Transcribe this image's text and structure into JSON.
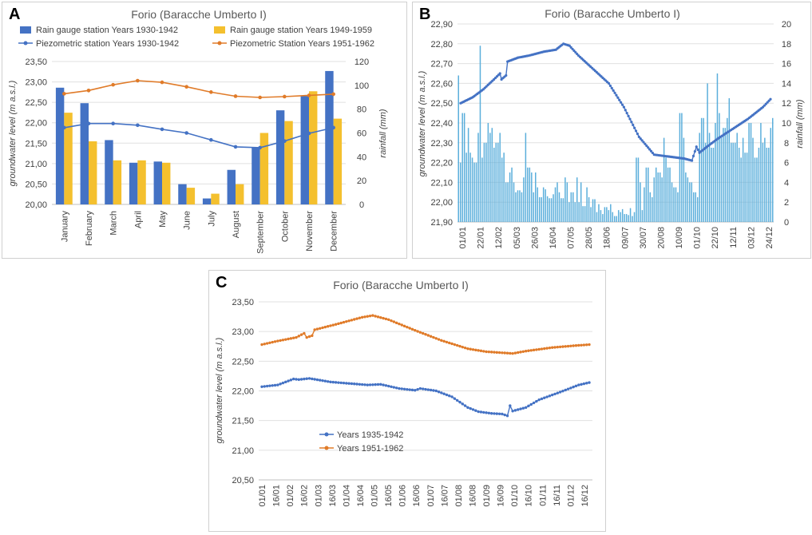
{
  "chart_data": [
    {
      "panel": "A",
      "type": "bar",
      "title": "Forio (Baracche Umberto I)",
      "ylabel": "groundwater level (m a.s.l.)",
      "y2label": "rainfall (mm)",
      "ylim": [
        20.0,
        23.5
      ],
      "y2lim": [
        0,
        120
      ],
      "yticks": [
        "20,00",
        "20,50",
        "21,00",
        "21,50",
        "22,00",
        "22,50",
        "23,00",
        "23,50"
      ],
      "y2ticks": [
        "0",
        "20",
        "40",
        "60",
        "80",
        "100",
        "120"
      ],
      "categories": [
        "January",
        "February",
        "March",
        "April",
        "May",
        "June",
        "July",
        "August",
        "September",
        "October",
        "November",
        "December"
      ],
      "series": [
        {
          "name": "Rain gauge station Years 1930-1942",
          "kind": "bar",
          "color": "#4472c4",
          "values": [
            98,
            85,
            54,
            35,
            36,
            17,
            5,
            29,
            48,
            79,
            91,
            112
          ]
        },
        {
          "name": "Rain gauge station Years 1949-1959",
          "kind": "bar",
          "color": "#f4c02e",
          "values": [
            77,
            53,
            37,
            37,
            35,
            14,
            9,
            17,
            60,
            70,
            95,
            72
          ]
        },
        {
          "name": "Piezometric station Years 1930-1942",
          "kind": "line",
          "color": "#4472c4",
          "values": [
            21.88,
            21.98,
            21.98,
            21.94,
            21.84,
            21.75,
            21.58,
            21.41,
            21.39,
            21.55,
            21.74,
            21.88
          ]
        },
        {
          "name": "Piezometric Station Years 1951-1962",
          "kind": "line",
          "color": "#e07b29",
          "values": [
            22.71,
            22.79,
            22.93,
            23.03,
            22.99,
            22.88,
            22.75,
            22.65,
            22.62,
            22.64,
            22.67,
            22.7
          ]
        }
      ]
    },
    {
      "panel": "B",
      "type": "bar",
      "title": "Forio (Baracche Umberto I)",
      "ylabel": "groundwater level (m a.s.l.)",
      "y2label": "rainfall (mm)",
      "ylim": [
        21.9,
        22.9
      ],
      "y2lim": [
        0,
        20
      ],
      "yticks": [
        "21,90",
        "22,00",
        "22,10",
        "22,20",
        "22,30",
        "22,40",
        "22,50",
        "22,60",
        "22,70",
        "22,80",
        "22,90"
      ],
      "y2ticks": [
        "0",
        "2",
        "4",
        "6",
        "8",
        "10",
        "12",
        "14",
        "16",
        "18",
        "20"
      ],
      "xticks": [
        "01/01",
        "22/01",
        "12/02",
        "05/03",
        "26/03",
        "16/04",
        "07/05",
        "28/05",
        "18/06",
        "09/07",
        "30/07",
        "20/08",
        "10/09",
        "01/10",
        "22/10",
        "12/11",
        "03/12",
        "24/12"
      ],
      "level_key_points": [
        [
          0,
          22.5
        ],
        [
          8,
          22.53
        ],
        [
          15,
          22.57
        ],
        [
          22,
          22.62
        ],
        [
          26,
          22.65
        ],
        [
          27,
          22.62
        ],
        [
          30,
          22.64
        ],
        [
          31,
          22.71
        ],
        [
          38,
          22.73
        ],
        [
          45,
          22.74
        ],
        [
          55,
          22.76
        ],
        [
          63,
          22.77
        ],
        [
          68,
          22.8
        ],
        [
          72,
          22.79
        ],
        [
          78,
          22.74
        ],
        [
          88,
          22.67
        ],
        [
          98,
          22.6
        ],
        [
          108,
          22.48
        ],
        [
          118,
          22.33
        ],
        [
          128,
          22.24
        ],
        [
          138,
          22.23
        ],
        [
          148,
          22.22
        ],
        [
          153,
          22.21
        ],
        [
          156,
          22.28
        ],
        [
          158,
          22.25
        ],
        [
          163,
          22.28
        ],
        [
          170,
          22.32
        ],
        [
          180,
          22.37
        ],
        [
          190,
          22.42
        ],
        [
          200,
          22.48
        ],
        [
          205,
          22.52
        ]
      ],
      "rain_key_points": [
        [
          0,
          14.8
        ],
        [
          1,
          6.0
        ],
        [
          2,
          11.0
        ],
        [
          3,
          7.0
        ],
        [
          4,
          9.5
        ],
        [
          5,
          7.0
        ],
        [
          6,
          6.5
        ],
        [
          7,
          6.0
        ],
        [
          8,
          9.0
        ],
        [
          9,
          17.8
        ],
        [
          10,
          6.5
        ],
        [
          11,
          8.0
        ],
        [
          12,
          10.0
        ],
        [
          13,
          9.0
        ],
        [
          14,
          9.5
        ],
        [
          15,
          7.5
        ],
        [
          16,
          8.0
        ],
        [
          17,
          9.0
        ],
        [
          18,
          6.5
        ],
        [
          19,
          7.0
        ],
        [
          20,
          4.0
        ],
        [
          21,
          5.0
        ],
        [
          22,
          5.5
        ],
        [
          23,
          4.0
        ],
        [
          24,
          3.0
        ],
        [
          25,
          3.2
        ],
        [
          26,
          3.0
        ],
        [
          27,
          4.5
        ],
        [
          28,
          9.0
        ],
        [
          29,
          5.5
        ],
        [
          30,
          5.0
        ],
        [
          31,
          3.0
        ],
        [
          32,
          5.0
        ],
        [
          33,
          3.5
        ],
        [
          34,
          2.5
        ],
        [
          35,
          3.5
        ],
        [
          36,
          3.3
        ],
        [
          37,
          2.6
        ],
        [
          38,
          2.4
        ],
        [
          39,
          2.8
        ],
        [
          40,
          3.5
        ],
        [
          41,
          4.0
        ],
        [
          42,
          3.0
        ],
        [
          43,
          2.4
        ],
        [
          44,
          4.5
        ],
        [
          45,
          4.0
        ],
        [
          46,
          2.0
        ],
        [
          47,
          3.0
        ],
        [
          48,
          2.0
        ],
        [
          49,
          4.5
        ],
        [
          50,
          2.0
        ],
        [
          51,
          4.0
        ],
        [
          52,
          1.6
        ],
        [
          53,
          3.5
        ],
        [
          54,
          2.5
        ],
        [
          55,
          1.5
        ],
        [
          56,
          2.3
        ],
        [
          57,
          1.0
        ],
        [
          58,
          1.8
        ],
        [
          59,
          1.2
        ],
        [
          60,
          0.8
        ],
        [
          61,
          1.5
        ],
        [
          62,
          1.2
        ],
        [
          63,
          1.8
        ],
        [
          64,
          1.0
        ],
        [
          65,
          0.6
        ],
        [
          66,
          1.2
        ],
        [
          67,
          1.0
        ],
        [
          68,
          1.3
        ],
        [
          69,
          0.8
        ],
        [
          70,
          0.7
        ],
        [
          71,
          1.4
        ],
        [
          72,
          0.6
        ],
        [
          73,
          1.0
        ],
        [
          74,
          6.5
        ],
        [
          75,
          4.0
        ],
        [
          76,
          1.2
        ],
        [
          77,
          3.5
        ],
        [
          78,
          5.5
        ],
        [
          79,
          3.0
        ],
        [
          80,
          2.5
        ],
        [
          81,
          4.5
        ],
        [
          82,
          5.5
        ],
        [
          83,
          5.0
        ],
        [
          84,
          4.5
        ],
        [
          85,
          8.5
        ],
        [
          86,
          6.5
        ],
        [
          87,
          5.5
        ],
        [
          88,
          4.0
        ],
        [
          89,
          3.5
        ],
        [
          90,
          3.5
        ],
        [
          91,
          3.0
        ],
        [
          92,
          11.0
        ],
        [
          93,
          8.5
        ],
        [
          94,
          5.0
        ],
        [
          95,
          4.5
        ],
        [
          96,
          4.0
        ],
        [
          97,
          3.0
        ],
        [
          98,
          3.0
        ],
        [
          99,
          2.5
        ],
        [
          100,
          9.0
        ],
        [
          101,
          10.5
        ],
        [
          102,
          8.0
        ],
        [
          103,
          14.0
        ],
        [
          104,
          9.0
        ],
        [
          105,
          7.5
        ],
        [
          106,
          10.0
        ],
        [
          107,
          15.0
        ],
        [
          108,
          11.0
        ],
        [
          109,
          8.5
        ],
        [
          110,
          9.5
        ],
        [
          111,
          10.5
        ],
        [
          112,
          12.5
        ],
        [
          113,
          8.0
        ],
        [
          114,
          8.0
        ],
        [
          115,
          9.0
        ],
        [
          116,
          7.5
        ],
        [
          117,
          6.5
        ],
        [
          118,
          8.5
        ],
        [
          119,
          7.0
        ],
        [
          120,
          10.0
        ],
        [
          121,
          10.0
        ],
        [
          122,
          8.5
        ],
        [
          123,
          6.5
        ],
        [
          124,
          7.5
        ],
        [
          125,
          10.0
        ],
        [
          126,
          8.0
        ],
        [
          127,
          8.5
        ],
        [
          128,
          7.5
        ],
        [
          129,
          9.5
        ],
        [
          130,
          10.5
        ]
      ]
    },
    {
      "panel": "C",
      "type": "line",
      "title": "Forio (Baracche Umberto I)",
      "ylabel": "groundwater level (m a.s.l.)",
      "ylim": [
        20.5,
        23.5
      ],
      "yticks": [
        "20,50",
        "21,00",
        "21,50",
        "22,00",
        "22,50",
        "23,00",
        "23,50"
      ],
      "xticks": [
        "01/01",
        "16/01",
        "01/02",
        "16/02",
        "01/03",
        "16/03",
        "01/04",
        "16/04",
        "01/05",
        "16/05",
        "01/06",
        "16/06",
        "01/07",
        "16/07",
        "01/08",
        "16/08",
        "01/09",
        "16/09",
        "01/10",
        "16/10",
        "01/11",
        "16/11",
        "01/12",
        "16/12"
      ],
      "series": [
        {
          "name": "Years 1935-1942",
          "color": "#4472c4",
          "key_points": [
            [
              0,
              22.07
            ],
            [
              6,
              22.1
            ],
            [
              12,
              22.2
            ],
            [
              14,
              22.19
            ],
            [
              18,
              22.21
            ],
            [
              26,
              22.15
            ],
            [
              40,
              22.1
            ],
            [
              45,
              22.11
            ],
            [
              52,
              22.04
            ],
            [
              58,
              22.01
            ],
            [
              60,
              22.04
            ],
            [
              66,
              22.0
            ],
            [
              72,
              21.9
            ],
            [
              78,
              21.72
            ],
            [
              82,
              21.65
            ],
            [
              87,
              21.62
            ],
            [
              91,
              21.61
            ],
            [
              93,
              21.58
            ],
            [
              94,
              21.75
            ],
            [
              95,
              21.66
            ],
            [
              100,
              21.72
            ],
            [
              105,
              21.85
            ],
            [
              113,
              21.98
            ],
            [
              120,
              22.1
            ],
            [
              124,
              22.14
            ]
          ]
        },
        {
          "name": "Years 1951-1962",
          "color": "#e07b29",
          "key_points": [
            [
              0,
              22.78
            ],
            [
              6,
              22.84
            ],
            [
              13,
              22.9
            ],
            [
              16,
              22.97
            ],
            [
              17,
              22.9
            ],
            [
              19,
              22.93
            ],
            [
              20,
              23.03
            ],
            [
              28,
              23.12
            ],
            [
              38,
              23.24
            ],
            [
              42,
              23.27
            ],
            [
              48,
              23.2
            ],
            [
              58,
              23.02
            ],
            [
              68,
              22.85
            ],
            [
              78,
              22.71
            ],
            [
              85,
              22.66
            ],
            [
              95,
              22.63
            ],
            [
              100,
              22.67
            ],
            [
              110,
              22.73
            ],
            [
              118,
              22.76
            ],
            [
              124,
              22.78
            ]
          ]
        }
      ]
    }
  ]
}
